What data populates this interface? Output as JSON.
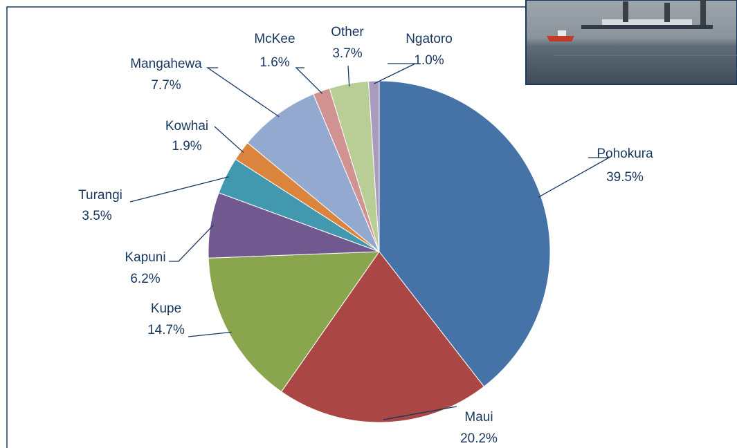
{
  "chart_data": {
    "type": "pie",
    "categories": [
      "Pohokura",
      "Maui",
      "Kupe",
      "Kapuni",
      "Turangi",
      "Kowhai",
      "Mangahewa",
      "McKee",
      "Other",
      "Ngatoro"
    ],
    "values": [
      39.5,
      20.2,
      14.7,
      6.2,
      3.5,
      1.9,
      7.7,
      1.6,
      3.7,
      1.0
    ],
    "value_labels": [
      "39.5%",
      "20.2%",
      "14.7%",
      "6.2%",
      "3.5%",
      "1.9%",
      "7.7%",
      "1.6%",
      "3.7%",
      "1.0%"
    ],
    "colors": [
      "#4572a7",
      "#aa4643",
      "#89a54e",
      "#71588f",
      "#4198af",
      "#db843d",
      "#93a9cf",
      "#d19392",
      "#b9cd96",
      "#a99bbd"
    ]
  }
}
